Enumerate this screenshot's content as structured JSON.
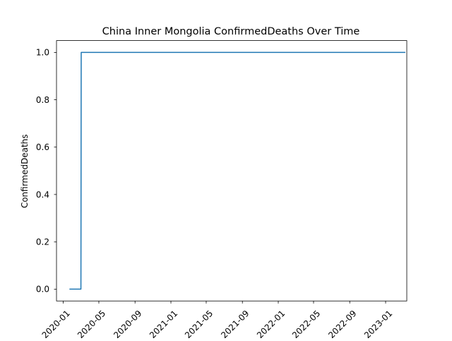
{
  "chart_data": {
    "type": "line",
    "title": "China Inner Mongolia ConfirmedDeaths Over Time",
    "xlabel": "",
    "ylabel": "ConfirmedDeaths",
    "x_axis_type": "date",
    "xlim": [
      "2019-12-09",
      "2023-03-14"
    ],
    "ylim": [
      -0.05,
      1.05
    ],
    "grid": false,
    "legend": "none",
    "line_style": "step",
    "series": [
      {
        "color": "#1f77b4",
        "points": [
          {
            "x": "2020-01-22",
            "y": 0
          },
          {
            "x": "2020-03-01",
            "y": 0
          },
          {
            "x": "2020-03-02",
            "y": 1
          },
          {
            "x": "2023-03-09",
            "y": 1
          }
        ]
      }
    ],
    "x_ticks": [
      {
        "date": "2020-01-01",
        "label": "2020-01"
      },
      {
        "date": "2020-05-01",
        "label": "2020-05"
      },
      {
        "date": "2020-09-01",
        "label": "2020-09"
      },
      {
        "date": "2021-01-01",
        "label": "2021-01"
      },
      {
        "date": "2021-05-01",
        "label": "2021-05"
      },
      {
        "date": "2021-09-01",
        "label": "2021-09"
      },
      {
        "date": "2022-01-01",
        "label": "2022-01"
      },
      {
        "date": "2022-05-01",
        "label": "2022-05"
      },
      {
        "date": "2022-09-01",
        "label": "2022-09"
      },
      {
        "date": "2023-01-01",
        "label": "2023-01"
      }
    ],
    "y_ticks": [
      {
        "value": 0.0,
        "label": "0.0"
      },
      {
        "value": 0.2,
        "label": "0.2"
      },
      {
        "value": 0.4,
        "label": "0.4"
      },
      {
        "value": 0.6,
        "label": "0.6"
      },
      {
        "value": 0.8,
        "label": "0.8"
      },
      {
        "value": 1.0,
        "label": "1.0"
      }
    ]
  }
}
